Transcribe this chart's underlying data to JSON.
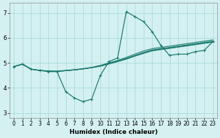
{
  "background_color": "#d4f0f0",
  "line_color": "#1a7a6e",
  "xlabel": "Humidex (Indice chaleur)",
  "xlim": [
    -0.5,
    23.5
  ],
  "ylim": [
    2.8,
    7.4
  ],
  "yticks": [
    3,
    4,
    5,
    6,
    7
  ],
  "xticks": [
    0,
    1,
    2,
    3,
    4,
    5,
    6,
    7,
    8,
    9,
    10,
    11,
    12,
    13,
    14,
    15,
    16,
    17,
    18,
    19,
    20,
    21,
    22,
    23
  ],
  "lines": [
    {
      "x": [
        0,
        1,
        2,
        3,
        4,
        5,
        6,
        7,
        8,
        9,
        10,
        11,
        12,
        13,
        14,
        15,
        16,
        17,
        18,
        19,
        20,
        21,
        22,
        23
      ],
      "y": [
        4.85,
        4.95,
        4.75,
        4.7,
        4.65,
        4.65,
        3.85,
        3.6,
        3.45,
        3.55,
        4.5,
        5.05,
        5.2,
        7.05,
        6.85,
        6.65,
        6.25,
        5.7,
        5.3,
        5.35,
        5.35,
        5.45,
        5.5,
        5.85
      ],
      "marker": true
    },
    {
      "x": [
        0,
        1,
        2,
        3,
        4,
        5,
        6,
        7,
        8,
        9,
        10,
        11,
        12,
        13,
        14,
        15,
        16,
        17,
        18,
        19,
        20,
        21,
        22,
        23
      ],
      "y": [
        4.85,
        4.95,
        4.75,
        4.7,
        4.68,
        4.67,
        4.7,
        4.73,
        4.77,
        4.82,
        4.9,
        5.0,
        5.1,
        5.22,
        5.35,
        5.48,
        5.57,
        5.62,
        5.67,
        5.72,
        5.77,
        5.82,
        5.87,
        5.92
      ],
      "marker": false
    },
    {
      "x": [
        0,
        1,
        2,
        3,
        4,
        5,
        6,
        7,
        8,
        9,
        10,
        11,
        12,
        13,
        14,
        15,
        16,
        17,
        18,
        19,
        20,
        21,
        22,
        23
      ],
      "y": [
        4.85,
        4.95,
        4.75,
        4.7,
        4.67,
        4.66,
        4.69,
        4.72,
        4.76,
        4.81,
        4.88,
        4.97,
        5.07,
        5.18,
        5.3,
        5.42,
        5.52,
        5.57,
        5.62,
        5.67,
        5.72,
        5.77,
        5.82,
        5.87
      ],
      "marker": false
    },
    {
      "x": [
        0,
        1,
        2,
        3,
        4,
        5,
        6,
        7,
        8,
        9,
        10,
        11,
        12,
        13,
        14,
        15,
        16,
        17,
        18,
        19,
        20,
        21,
        22,
        23
      ],
      "y": [
        4.85,
        4.95,
        4.75,
        4.7,
        4.67,
        4.66,
        4.69,
        4.72,
        4.76,
        4.81,
        4.87,
        4.96,
        5.06,
        5.16,
        5.28,
        5.4,
        5.5,
        5.55,
        5.6,
        5.65,
        5.7,
        5.75,
        5.8,
        5.85
      ],
      "marker": false
    },
    {
      "x": [
        0,
        1,
        2,
        3,
        4,
        5,
        6,
        7,
        8,
        9,
        10,
        11,
        12,
        13,
        14,
        15,
        16,
        17,
        18,
        19,
        20,
        21,
        22,
        23
      ],
      "y": [
        4.85,
        4.95,
        4.75,
        4.7,
        4.67,
        4.66,
        4.69,
        4.72,
        4.76,
        4.81,
        4.87,
        4.96,
        5.05,
        5.15,
        5.27,
        5.38,
        5.48,
        5.53,
        5.58,
        5.63,
        5.68,
        5.73,
        5.78,
        5.83
      ],
      "marker": false
    }
  ]
}
